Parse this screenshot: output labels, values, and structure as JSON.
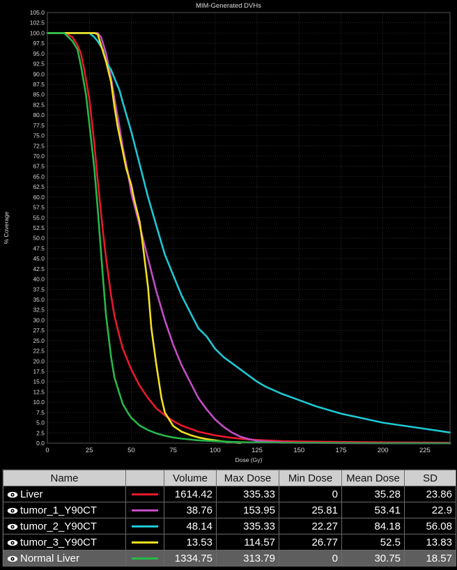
{
  "chart_data": {
    "type": "line",
    "title": "MIM-Generated DVHs",
    "xlabel": "Dose (Gy)",
    "ylabel": "% Coverage",
    "xlim": [
      0,
      240
    ],
    "ylim": [
      0,
      105
    ],
    "x_ticks": [
      0,
      25,
      50,
      75,
      100,
      125,
      150,
      175,
      200,
      225
    ],
    "y_tick_step": 2.5,
    "grid": true,
    "series": [
      {
        "name": "Liver",
        "color": "#e8192c",
        "x": [
          0,
          6,
          10,
          15,
          18,
          20,
          22,
          25,
          28,
          30,
          33,
          35,
          38,
          40,
          43,
          45,
          50,
          55,
          60,
          65,
          70,
          75,
          80,
          90,
          100,
          110,
          120,
          130,
          140,
          150,
          200,
          240
        ],
        "y": [
          100,
          100,
          100,
          99,
          97,
          95,
          91,
          84,
          73,
          64,
          52,
          45,
          36,
          31,
          26,
          23,
          18,
          14,
          11,
          8.5,
          6.8,
          5.4,
          4.3,
          2.8,
          1.9,
          1.3,
          0.9,
          0.7,
          0.5,
          0.4,
          0.2,
          0.1
        ]
      },
      {
        "name": "tumor_1_Y90CT",
        "color": "#c34dc3",
        "x": [
          0,
          28,
          30,
          32,
          35,
          38,
          40,
          43,
          45,
          48,
          50,
          55,
          60,
          65,
          70,
          75,
          80,
          85,
          90,
          95,
          100,
          105,
          110,
          115,
          120,
          125,
          130,
          140,
          150,
          160,
          175,
          200,
          240
        ],
        "y": [
          100,
          100,
          100,
          99,
          95,
          89,
          84,
          77,
          72,
          66,
          61,
          53,
          45,
          37,
          30,
          24,
          19,
          15,
          11,
          8.2,
          5.8,
          4,
          2.6,
          1.6,
          1,
          0.6,
          0.4,
          0.2,
          0.1,
          0.1,
          0,
          0,
          0
        ]
      },
      {
        "name": "tumor_2_Y90CT",
        "color": "#1ec8d2",
        "x": [
          0,
          25,
          28,
          30,
          33,
          35,
          38,
          40,
          43,
          45,
          50,
          55,
          60,
          65,
          70,
          75,
          80,
          85,
          90,
          95,
          100,
          105,
          110,
          115,
          120,
          125,
          130,
          140,
          150,
          160,
          175,
          200,
          225,
          240
        ],
        "y": [
          100,
          100,
          99,
          98,
          96,
          93,
          91,
          89,
          86,
          83,
          76,
          68,
          60,
          53,
          46,
          41,
          36,
          32,
          28,
          26,
          23,
          21,
          19.5,
          18,
          16.5,
          15,
          13.8,
          12,
          10.5,
          9,
          7.2,
          5,
          3.5,
          2.6
        ]
      },
      {
        "name": "tumor_3_Y90CT",
        "color": "#f2e01e",
        "x": [
          0,
          28,
          30,
          32,
          35,
          38,
          40,
          42,
          45,
          47,
          50,
          52,
          55,
          57,
          60,
          62,
          65,
          68,
          70,
          75,
          80,
          85,
          90,
          95,
          100,
          105,
          110,
          115
        ],
        "y": [
          100,
          100,
          99.7,
          97,
          93,
          88,
          82,
          77,
          71,
          67,
          63,
          59,
          54,
          48,
          38,
          28,
          19,
          11,
          7.5,
          4.2,
          2.8,
          2,
          1.4,
          1,
          0.7,
          0.4,
          0.2,
          0
        ]
      },
      {
        "name": "Normal Liver",
        "color": "#27b84a",
        "x": [
          0,
          5,
          10,
          15,
          18,
          20,
          23,
          25,
          28,
          30,
          33,
          35,
          38,
          40,
          43,
          45,
          48,
          50,
          55,
          60,
          65,
          70,
          75,
          80,
          90,
          100,
          110,
          120,
          130,
          140,
          160,
          200,
          240
        ],
        "y": [
          100,
          100,
          100,
          98,
          96,
          92,
          85,
          78,
          67,
          57,
          41,
          31,
          21,
          16,
          12,
          9.5,
          7.4,
          6.2,
          4.3,
          3.2,
          2.4,
          1.8,
          1.4,
          1.1,
          0.7,
          0.5,
          0.3,
          0.2,
          0.2,
          0.1,
          0.1,
          0,
          0
        ]
      }
    ]
  },
  "table": {
    "headers": {
      "name": "Name",
      "volume": "Volume",
      "max_dose": "Max Dose",
      "min_dose": "Min Dose",
      "mean_dose": "Mean Dose",
      "sd": "SD"
    },
    "rows": [
      {
        "name": "Liver",
        "color": "#e8192c",
        "volume": "1614.42",
        "max_dose": "335.33",
        "min_dose": "0",
        "mean_dose": "35.28",
        "sd": "23.86"
      },
      {
        "name": "tumor_1_Y90CT",
        "color": "#c34dc3",
        "volume": "38.76",
        "max_dose": "153.95",
        "min_dose": "25.81",
        "mean_dose": "53.41",
        "sd": "22.9"
      },
      {
        "name": "tumor_2_Y90CT",
        "color": "#1ec8d2",
        "volume": "48.14",
        "max_dose": "335.33",
        "min_dose": "22.27",
        "mean_dose": "84.18",
        "sd": "56.08"
      },
      {
        "name": "tumor_3_Y90CT",
        "color": "#f2e01e",
        "volume": "13.53",
        "max_dose": "114.57",
        "min_dose": "26.77",
        "mean_dose": "52.5",
        "sd": "13.83"
      },
      {
        "name": "Normal Liver",
        "color": "#27b84a",
        "volume": "1334.75",
        "max_dose": "313.79",
        "min_dose": "0",
        "mean_dose": "30.75",
        "sd": "18.57"
      }
    ],
    "selected_row": 4,
    "visibility_icon": "eye-icon"
  }
}
